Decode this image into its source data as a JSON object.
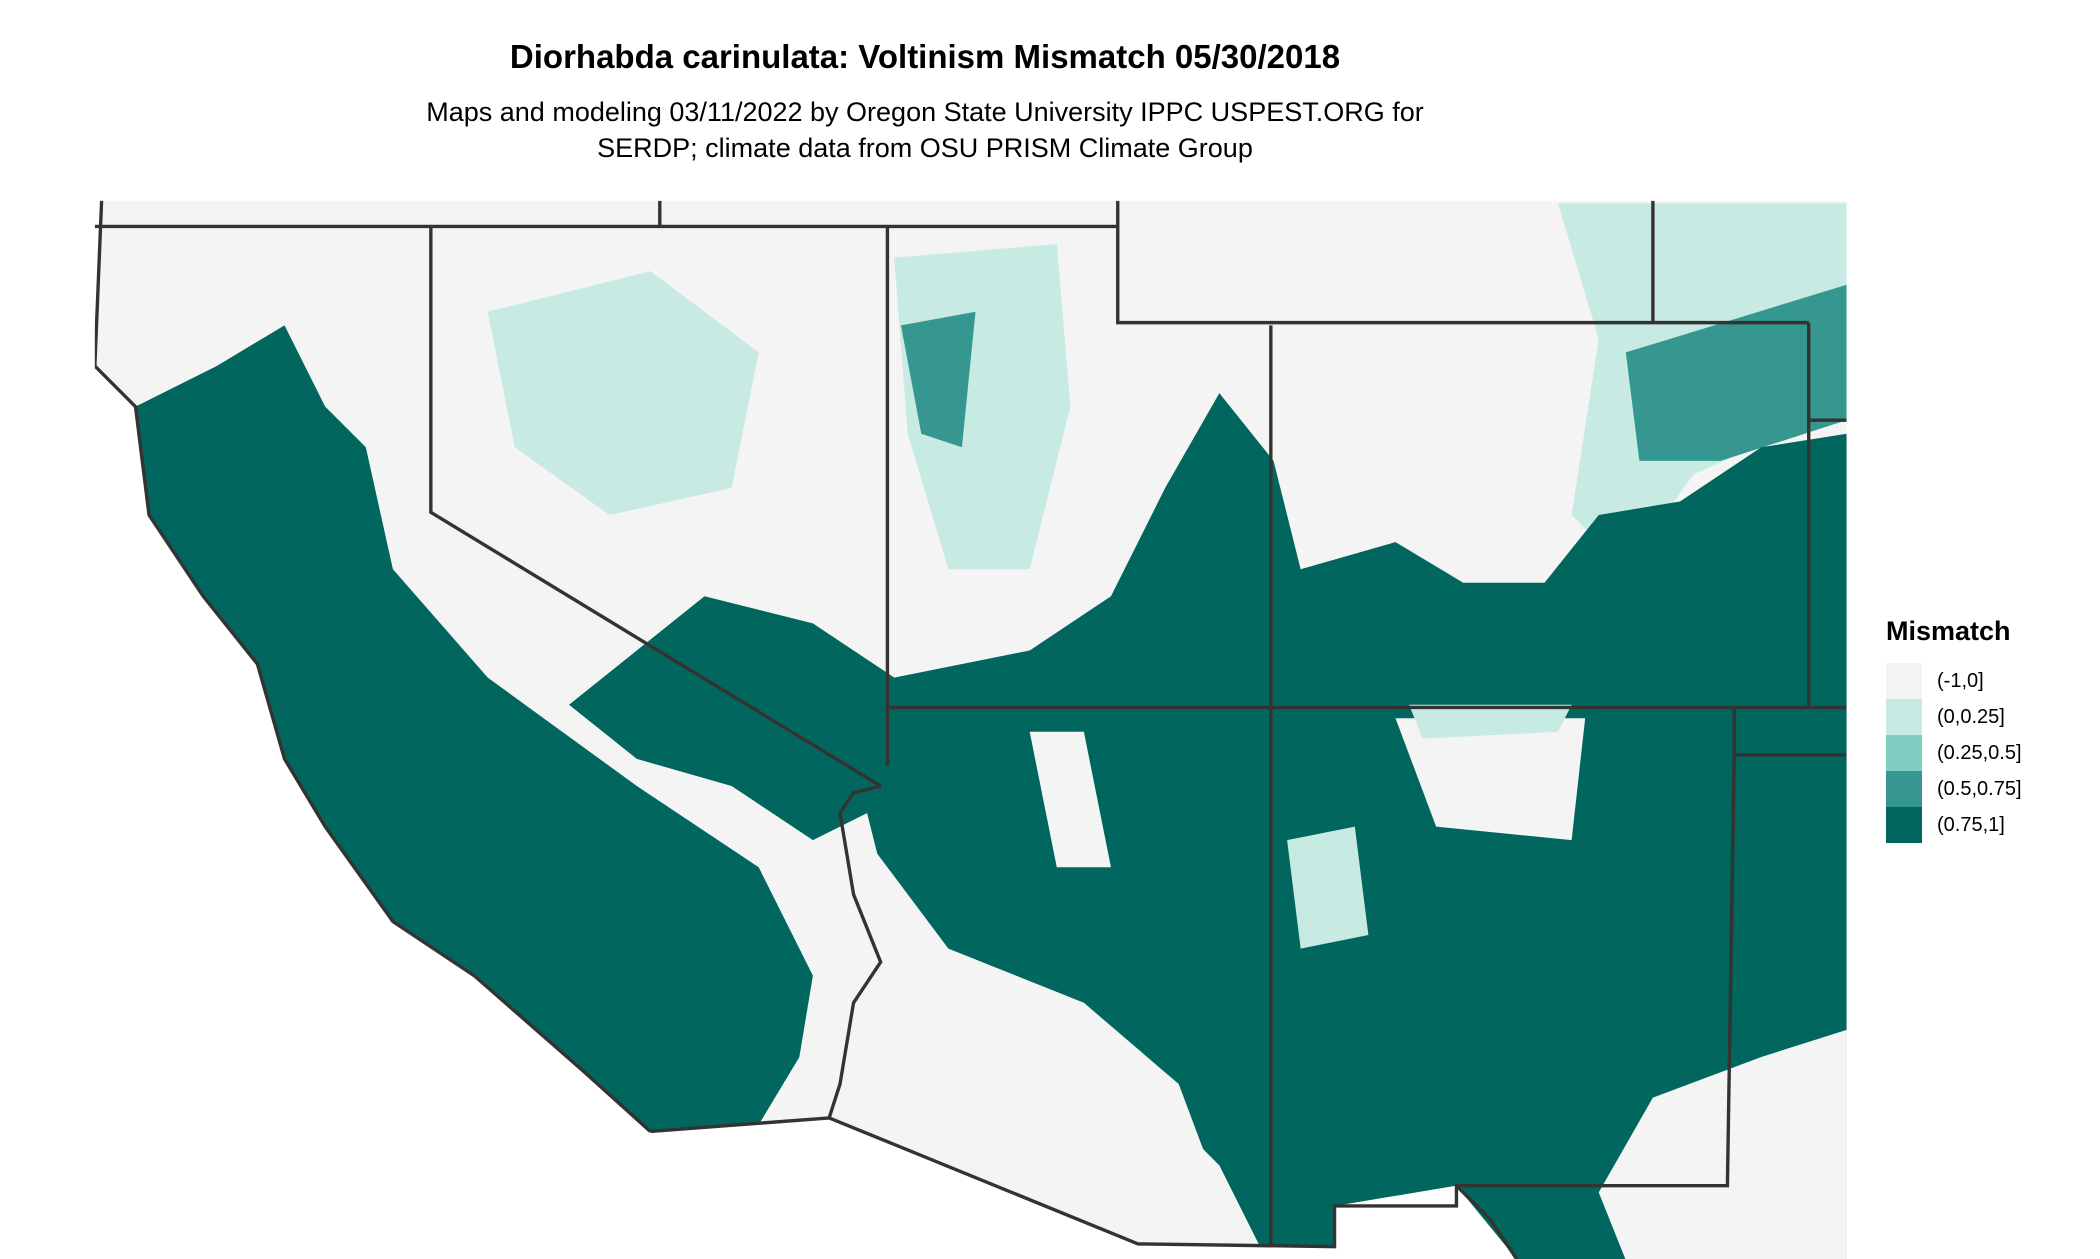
{
  "title": "Diorhabda carinulata: Voltinism Mismatch 05/30/2018",
  "subtitle_line1": "Maps and modeling 03/11/2022 by Oregon State University IPPC USPEST.ORG for",
  "subtitle_line2": "SERDP; climate data from OSU PRISM Climate Group",
  "legend": {
    "title": "Mismatch",
    "items": [
      {
        "label": "(-1,0]",
        "color": "#f4f4f4"
      },
      {
        "label": "(0,0.25]",
        "color": "#c7eae3"
      },
      {
        "label": "(0.25,0.5]",
        "color": "#80cdc1"
      },
      {
        "label": "(0.5,0.75]",
        "color": "#35978f"
      },
      {
        "label": "(0.75,1]",
        "color": "#01665e"
      }
    ]
  },
  "colors": {
    "border": "#333333",
    "background": "#ffffff"
  }
}
